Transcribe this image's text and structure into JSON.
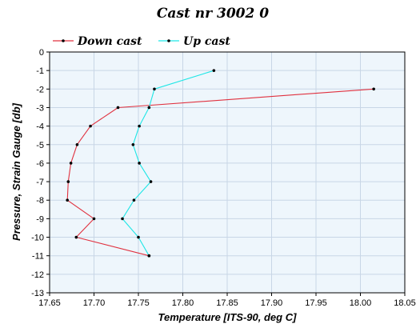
{
  "chart_data": {
    "type": "line",
    "title": "Cast nr 3002 0",
    "xlabel": "Temperature [ITS-90, deg C]",
    "ylabel": "Pressure, Strain Gauge [db]",
    "xlim": [
      17.65,
      18.05
    ],
    "ylim": [
      -13,
      0
    ],
    "x_ticks": [
      "17.65",
      "17.70",
      "17.75",
      "17.80",
      "17.85",
      "17.90",
      "17.95",
      "18.00",
      "18.05"
    ],
    "y_ticks": [
      "0",
      "-1",
      "-2",
      "-3",
      "-4",
      "-5",
      "-6",
      "-7",
      "-8",
      "-9",
      "-10",
      "-11",
      "-12",
      "-13"
    ],
    "grid": true,
    "legend_position": "top-left",
    "background_color": "#eef6fc",
    "grid_color": "#c8d6e6",
    "series": [
      {
        "name": "Down cast",
        "color": "#e0313f",
        "points": [
          {
            "x": 18.015,
            "y": -2
          },
          {
            "x": 17.727,
            "y": -3
          },
          {
            "x": 17.696,
            "y": -4
          },
          {
            "x": 17.681,
            "y": -5
          },
          {
            "x": 17.674,
            "y": -6
          },
          {
            "x": 17.671,
            "y": -7
          },
          {
            "x": 17.67,
            "y": -8
          },
          {
            "x": 17.7,
            "y": -9
          },
          {
            "x": 17.68,
            "y": -10
          },
          {
            "x": 17.762,
            "y": -11
          }
        ]
      },
      {
        "name": "Up cast",
        "color": "#1ee6e6",
        "points": [
          {
            "x": 17.835,
            "y": -1
          },
          {
            "x": 17.768,
            "y": -2
          },
          {
            "x": 17.762,
            "y": -3
          },
          {
            "x": 17.751,
            "y": -4
          },
          {
            "x": 17.744,
            "y": -5
          },
          {
            "x": 17.751,
            "y": -6
          },
          {
            "x": 17.764,
            "y": -7
          },
          {
            "x": 17.745,
            "y": -8
          },
          {
            "x": 17.732,
            "y": -9
          },
          {
            "x": 17.75,
            "y": -10
          },
          {
            "x": 17.762,
            "y": -11
          }
        ]
      }
    ]
  }
}
